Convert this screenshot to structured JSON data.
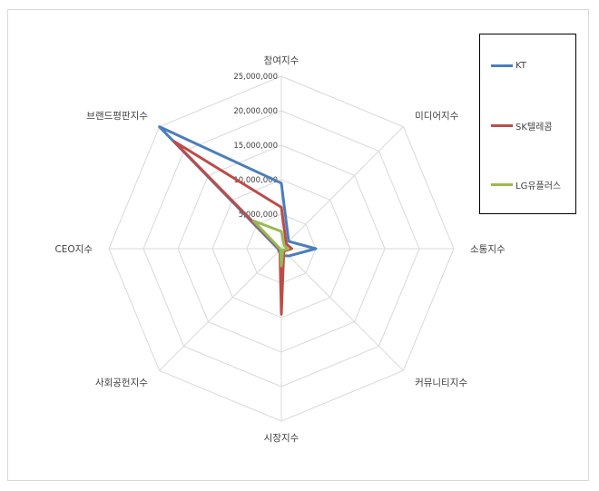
{
  "chart_data": {
    "type": "radar",
    "axes": [
      "참여지수",
      "미디어지수",
      "소통지수",
      "커뮤니티지수",
      "시장지수",
      "사회공헌지수",
      "CEO지수",
      "브랜드평판지수"
    ],
    "tick_labels": [
      "25,000,000",
      "20,000,000",
      "15,000,000",
      "10,000,000",
      "5,000,000",
      ""
    ],
    "rmax": 25000000,
    "grid": true,
    "legend_position": "right",
    "series": [
      {
        "name": "KT",
        "color": "#4a7ebb",
        "values": [
          9500000,
          1500000,
          5000000,
          1500000,
          1000000,
          500000,
          500000,
          25000000
        ]
      },
      {
        "name": "SK텔레콤",
        "color": "#be4b48",
        "values": [
          6000000,
          1000000,
          1500000,
          500000,
          9500000,
          300000,
          300000,
          22000000
        ]
      },
      {
        "name": "LG유플러스",
        "color": "#98b954",
        "values": [
          2500000,
          600000,
          1000000,
          300000,
          2500000,
          200000,
          200000,
          5700000
        ]
      }
    ]
  }
}
